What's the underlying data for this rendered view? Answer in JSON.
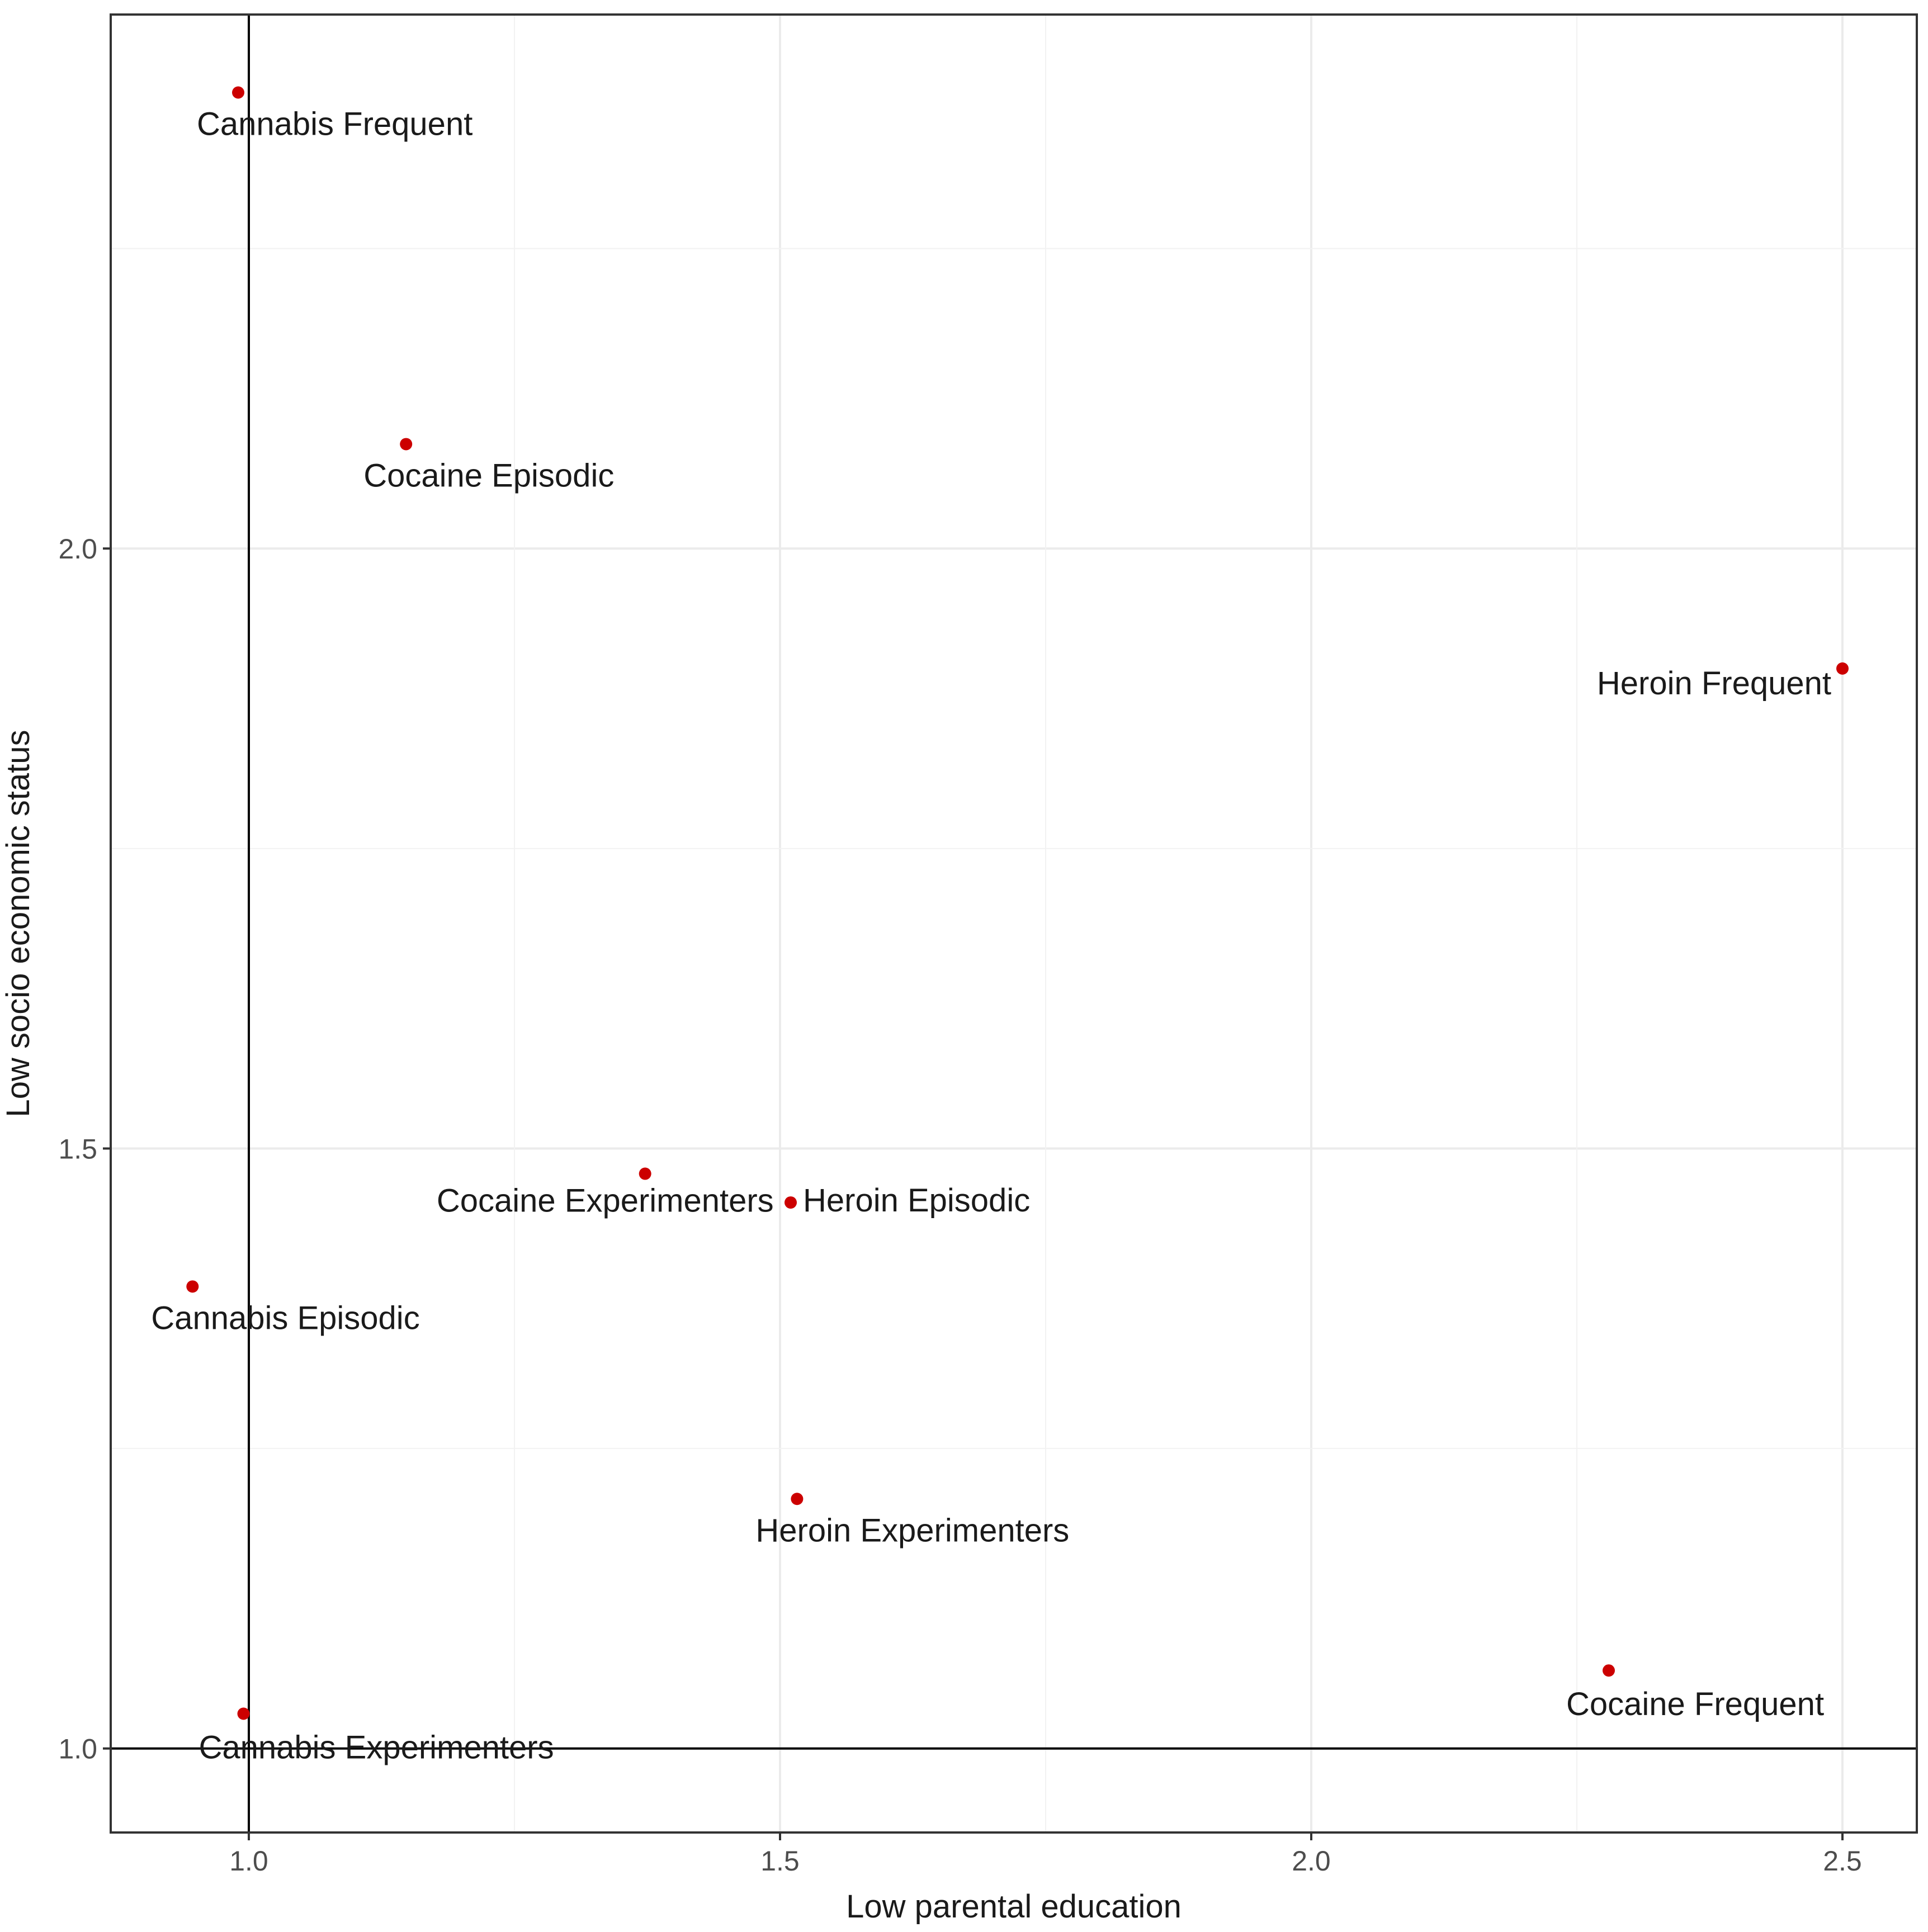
{
  "chart_data": {
    "type": "scatter",
    "title": "",
    "xlabel": "Low parental education",
    "ylabel": "Low socio economic status",
    "xlim": [
      0.87,
      2.57
    ],
    "ylim": [
      0.93,
      2.445
    ],
    "xticks": [
      1.0,
      1.5,
      2.0,
      2.5
    ],
    "yticks": [
      1.0,
      1.5,
      2.0
    ],
    "xtick_labels": [
      "1.0",
      "1.5",
      "2.0",
      "2.5"
    ],
    "ytick_labels": [
      "1.0",
      "1.5",
      "2.0"
    ],
    "reference_lines": {
      "x": 1.0,
      "y": 1.0
    },
    "grid": true,
    "point_color": "#cc0000",
    "points": [
      {
        "label": "Cannabis Frequent",
        "x": 0.99,
        "y": 2.38,
        "anchor": "below"
      },
      {
        "label": "Cocaine Episodic",
        "x": 1.148,
        "y": 2.087,
        "anchor": "below"
      },
      {
        "label": "Heroin Frequent",
        "x": 2.5,
        "y": 1.9,
        "anchor": "left"
      },
      {
        "label": "Cocaine Experimenters",
        "x": 1.373,
        "y": 1.479,
        "anchor": "below-left"
      },
      {
        "label": "Heroin Episodic",
        "x": 1.51,
        "y": 1.455,
        "anchor": "right"
      },
      {
        "label": "Cannabis Episodic",
        "x": 0.947,
        "y": 1.385,
        "anchor": "below"
      },
      {
        "label": "Heroin Experimenters",
        "x": 1.516,
        "y": 1.208,
        "anchor": "below"
      },
      {
        "label": "Cocaine Frequent",
        "x": 2.28,
        "y": 1.065,
        "anchor": "below"
      },
      {
        "label": "Cannabis Experimenters",
        "x": 0.995,
        "y": 1.029,
        "anchor": "below"
      }
    ]
  }
}
